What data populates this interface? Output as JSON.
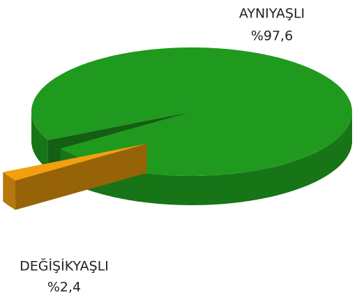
{
  "chart_data": {
    "type": "pie3d",
    "categories": [
      "AYNIYAŞLI",
      "DEĞİŞİKYAŞLI"
    ],
    "values": [
      97.6,
      2.4
    ],
    "value_labels": [
      "%97,6",
      "%2,4"
    ],
    "colors": [
      "#1f9a1f",
      "#f2a00f"
    ]
  }
}
